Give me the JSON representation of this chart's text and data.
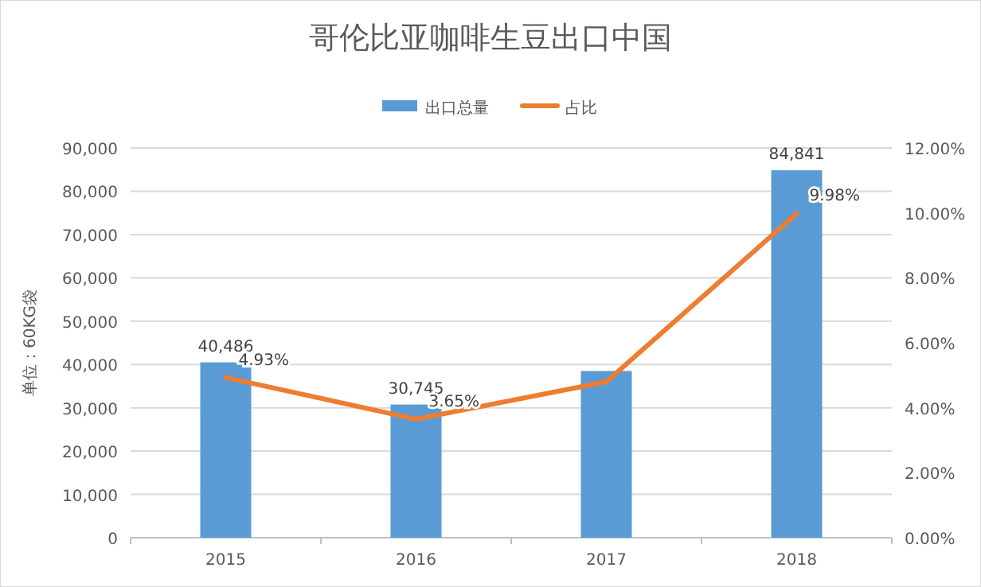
{
  "chart_data": {
    "type": "bar",
    "title": "哥伦比亚咖啡生豆出口中国",
    "ylabel": "单位：60KG袋",
    "categories": [
      "2015",
      "2016",
      "2017",
      "2018"
    ],
    "series": [
      {
        "name": "出口总量",
        "color": "#5b9bd5",
        "values": [
          40486,
          30745,
          38500,
          84841
        ],
        "value_labels": [
          "40,486",
          "30,745",
          null,
          "84,841"
        ]
      },
      {
        "name": "占比",
        "type": "line",
        "axis": "y2",
        "color": "#ed7d31",
        "values": [
          4.93,
          3.65,
          4.8,
          9.98
        ],
        "value_labels": [
          "4.93%",
          "3.65%",
          null,
          "9.98%"
        ]
      }
    ],
    "ylim": [
      0,
      90000
    ],
    "yticks": [
      {
        "value": 0,
        "label": "0"
      },
      {
        "value": 10000,
        "label": "10,000"
      },
      {
        "value": 20000,
        "label": "20,000"
      },
      {
        "value": 30000,
        "label": "30,000"
      },
      {
        "value": 40000,
        "label": "40,000"
      },
      {
        "value": 50000,
        "label": "50,000"
      },
      {
        "value": 60000,
        "label": "60,000"
      },
      {
        "value": 70000,
        "label": "70,000"
      },
      {
        "value": 80000,
        "label": "80,000"
      },
      {
        "value": 90000,
        "label": "90,000"
      }
    ],
    "y2lim": [
      0,
      12
    ],
    "y2ticks": [
      {
        "value": 0,
        "label": "0.00%"
      },
      {
        "value": 2,
        "label": "2.00%"
      },
      {
        "value": 4,
        "label": "4.00%"
      },
      {
        "value": 6,
        "label": "6.00%"
      },
      {
        "value": 8,
        "label": "8.00%"
      },
      {
        "value": 10,
        "label": "10.00%"
      },
      {
        "value": 12,
        "label": "12.00%"
      }
    ],
    "grid": "y",
    "legend": "top",
    "line_style": "solid",
    "marker": "none"
  }
}
